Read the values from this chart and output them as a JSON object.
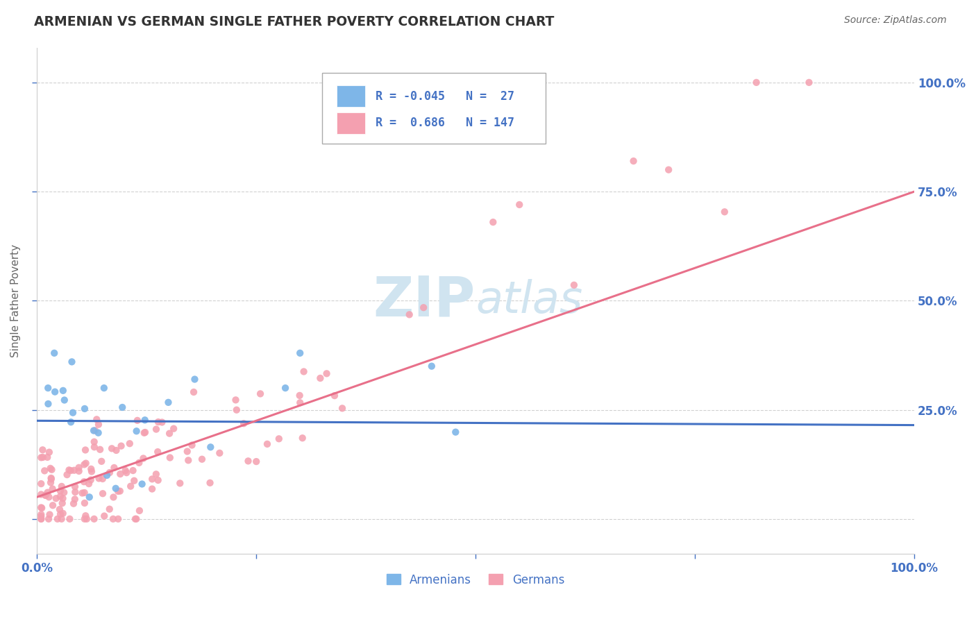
{
  "title": "ARMENIAN VS GERMAN SINGLE FATHER POVERTY CORRELATION CHART",
  "source": "Source: ZipAtlas.com",
  "ylabel": "Single Father Poverty",
  "xlim": [
    0.0,
    1.0
  ],
  "ylim": [
    -0.08,
    1.08
  ],
  "armenian_color": "#7EB6E8",
  "german_color": "#F4A0B0",
  "armenian_R": -0.045,
  "armenian_N": 27,
  "german_R": 0.686,
  "german_N": 147,
  "watermark": "ZIPAtlas",
  "watermark_color": "#d0e4f0",
  "background_color": "#ffffff",
  "grid_color": "#cccccc",
  "title_color": "#333333",
  "label_color": "#4472c4",
  "armenian_line_color": "#4472c4",
  "german_line_color": "#E8708A",
  "legend_border_color": "#aaaaaa",
  "spine_color": "#cccccc"
}
